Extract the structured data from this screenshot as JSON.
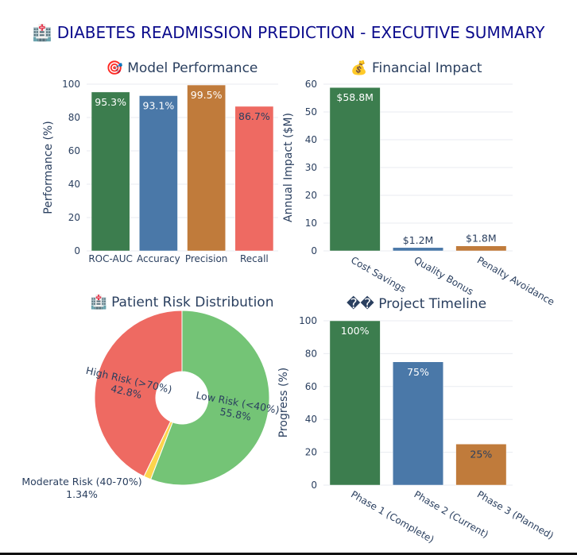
{
  "page": {
    "title": "🏥 DIABETES READMISSION PREDICTION - EXECUTIVE SUMMARY",
    "title_color": "#0b0b8c"
  },
  "colors": {
    "green": "#3c7d4e",
    "blue": "#4a78a8",
    "orange": "#c07b3b",
    "red": "#ee6a62",
    "pie_green": "#74c476",
    "pie_yellow": "#fdd44c",
    "grid": "#e8ebf0",
    "axis_text": "#2a3f5f"
  },
  "chart_data": [
    {
      "id": "performance",
      "type": "bar",
      "title": "🎯 Model Performance",
      "ylabel": "Performance (%)",
      "ylim": [
        0,
        100
      ],
      "yticks": [
        0,
        20,
        40,
        60,
        80,
        100
      ],
      "categories": [
        "ROC-AUC",
        "Accuracy",
        "Precision",
        "Recall"
      ],
      "values": [
        95.3,
        93.1,
        99.5,
        86.7
      ],
      "labels": [
        "95.3%",
        "93.1%",
        "99.5%",
        "86.7%"
      ],
      "colors": [
        "#3c7d4e",
        "#4a78a8",
        "#c07b3b",
        "#ee6a62"
      ],
      "label_colors": [
        "#ffffff",
        "#ffffff",
        "#ffffff",
        "#2a3f5f"
      ]
    },
    {
      "id": "financial",
      "type": "bar",
      "title": "💰 Financial Impact",
      "ylabel": "Annual Impact ($M)",
      "ylim": [
        0,
        60
      ],
      "yticks": [
        0,
        10,
        20,
        30,
        40,
        50,
        60
      ],
      "categories": [
        "Cost Savings",
        "Quality Bonus",
        "Penalty Avoidance"
      ],
      "values": [
        58.8,
        1.2,
        1.8
      ],
      "labels": [
        "$58.8M",
        "$1.2M",
        "$1.8M"
      ],
      "colors": [
        "#3c7d4e",
        "#4a78a8",
        "#c07b3b"
      ],
      "label_colors": [
        "#ffffff",
        "#2a3f5f",
        "#2a3f5f"
      ]
    },
    {
      "id": "risk",
      "type": "pie",
      "title": "🏥 Patient Risk Distribution",
      "hole": true,
      "slices": [
        {
          "label": "Low Risk (<40%)",
          "value": 55.8,
          "pct": "55.8%",
          "color": "#74c476"
        },
        {
          "label": "Moderate Risk (40-70%)",
          "value": 1.34,
          "pct": "1.34%",
          "color": "#fdd44c"
        },
        {
          "label": "High Risk (>70%)",
          "value": 42.8,
          "pct": "42.8%",
          "color": "#ee6a62"
        }
      ]
    },
    {
      "id": "timeline",
      "type": "bar",
      "title": "�� Project Timeline",
      "ylabel": "Progress (%)",
      "ylim": [
        0,
        100
      ],
      "yticks": [
        0,
        20,
        40,
        60,
        80,
        100
      ],
      "categories": [
        "Phase 1 (Complete)",
        "Phase 2 (Current)",
        "Phase 3 (Planned)"
      ],
      "values": [
        100,
        75,
        25
      ],
      "labels": [
        "100%",
        "75%",
        "25%"
      ],
      "colors": [
        "#3c7d4e",
        "#4a78a8",
        "#c07b3b"
      ],
      "label_colors": [
        "#ffffff",
        "#ffffff",
        "#2a3f5f"
      ]
    }
  ]
}
